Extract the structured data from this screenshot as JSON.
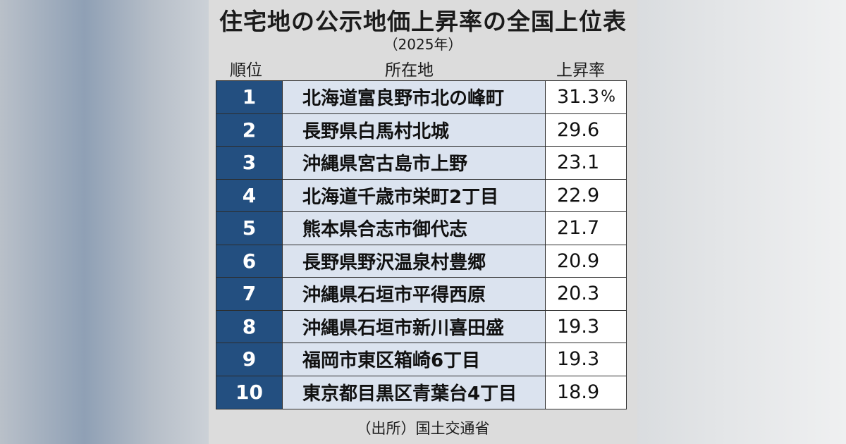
{
  "title": "住宅地の公示地価上昇率の全国上位表",
  "subtitle": "（2025年）",
  "headers": {
    "rank": "順位",
    "location": "所在地",
    "rate": "上昇率"
  },
  "unit": "%",
  "source": "（出所）国土交通省",
  "colors": {
    "rank_bg": "#234f80",
    "location_bg": "#dbe3ef",
    "rate_bg": "#ffffff"
  },
  "chart_data": {
    "type": "table",
    "title": "住宅地の公示地価上昇率の全国上位表",
    "subtitle": "（2025年）",
    "columns": [
      "順位",
      "所在地",
      "上昇率"
    ],
    "rows": [
      {
        "rank": "1",
        "location": "北海道富良野市北の峰町",
        "rate": "31.3"
      },
      {
        "rank": "2",
        "location": "長野県白馬村北城",
        "rate": "29.6"
      },
      {
        "rank": "3",
        "location": "沖縄県宮古島市上野",
        "rate": "23.1"
      },
      {
        "rank": "4",
        "location": "北海道千歳市栄町2丁目",
        "rate": "22.9"
      },
      {
        "rank": "5",
        "location": "熊本県合志市御代志",
        "rate": "21.7"
      },
      {
        "rank": "6",
        "location": "長野県野沢温泉村豊郷",
        "rate": "20.9"
      },
      {
        "rank": "7",
        "location": "沖縄県石垣市平得西原",
        "rate": "20.3"
      },
      {
        "rank": "8",
        "location": "沖縄県石垣市新川喜田盛",
        "rate": "19.3"
      },
      {
        "rank": "9",
        "location": "福岡市東区箱崎6丁目",
        "rate": "19.3"
      },
      {
        "rank": "10",
        "location": "東京都目黒区青葉台4丁目",
        "rate": "18.9"
      }
    ]
  }
}
